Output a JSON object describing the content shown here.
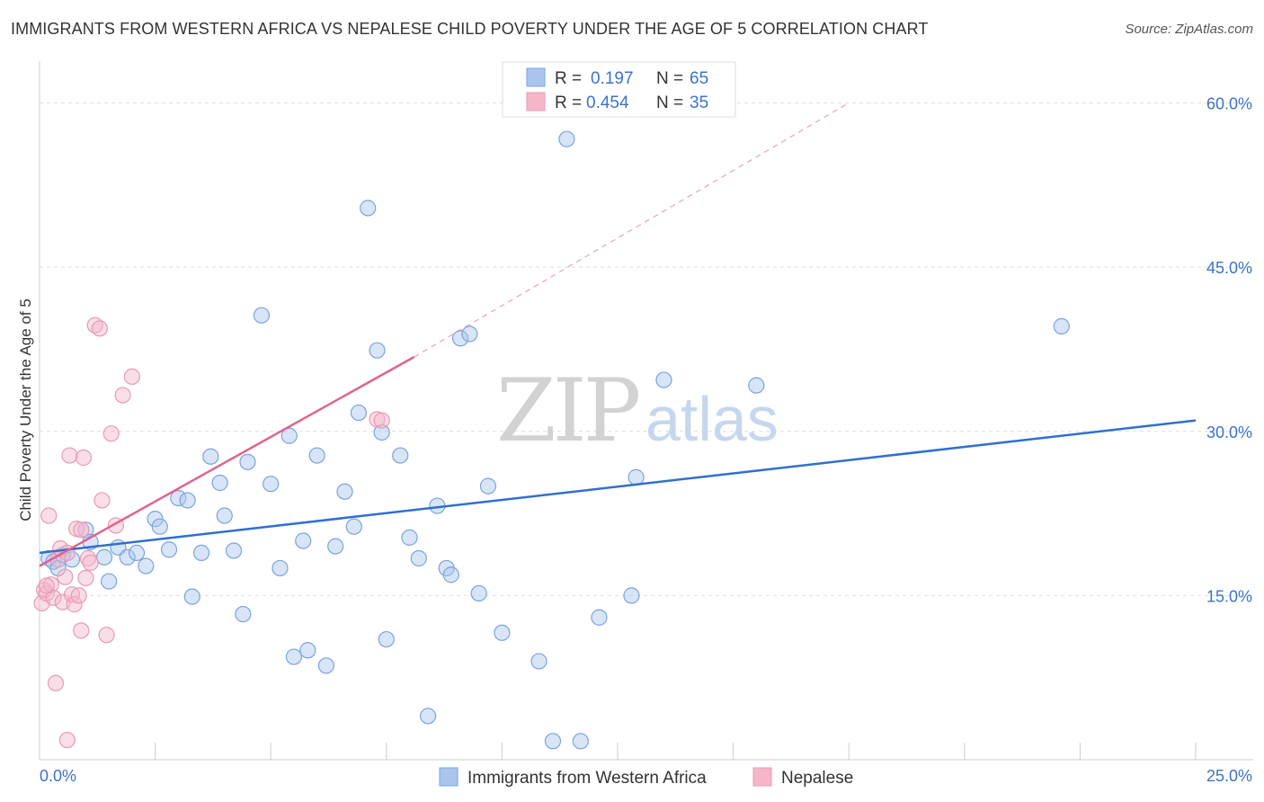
{
  "title": "IMMIGRANTS FROM WESTERN AFRICA VS NEPALESE CHILD POVERTY UNDER THE AGE OF 5 CORRELATION CHART",
  "source": "Source: ZipAtlas.com",
  "watermark": {
    "zip": "ZIP",
    "atlas": "atlas"
  },
  "colors": {
    "blue": "#3b73c8",
    "blue_fill": "#a9c5ee",
    "blue_line": "#2f6fd0",
    "pink": "#e0628d",
    "pink_fill": "#f5b6ca",
    "grid": "#dddddd"
  },
  "legend": {
    "r_label": "R =",
    "n_label": "N =",
    "rows": [
      {
        "r": "0.197",
        "n": "65"
      },
      {
        "r": "0.454",
        "n": "35"
      }
    ]
  },
  "chart_data": {
    "type": "scatter",
    "title": "IMMIGRANTS FROM WESTERN AFRICA VS NEPALESE CHILD POVERTY UNDER THE AGE OF 5 CORRELATION CHART",
    "xlabel": "",
    "ylabel": "Child Poverty Under the Age of 5",
    "xlim": [
      0,
      25
    ],
    "ylim": [
      0,
      63
    ],
    "x_tick_labels": [
      "0.0%",
      "25.0%"
    ],
    "y_ticks": [
      15,
      30,
      45,
      60
    ],
    "y_tick_labels": [
      "15.0%",
      "30.0%",
      "45.0%",
      "60.0%"
    ],
    "grid": true,
    "legend_position": "top-center",
    "series": [
      {
        "name": "Immigrants from Western Africa",
        "color": "#3b73c8",
        "trend": {
          "x0": 0,
          "y0": 18.9,
          "x1": 25,
          "y1": 31.0
        },
        "points": [
          [
            0.2,
            18.4
          ],
          [
            0.3,
            18.1
          ],
          [
            0.4,
            17.5
          ],
          [
            0.5,
            18.7
          ],
          [
            0.7,
            18.3
          ],
          [
            1.0,
            21.0
          ],
          [
            1.1,
            19.9
          ],
          [
            1.4,
            18.5
          ],
          [
            1.5,
            16.3
          ],
          [
            1.7,
            19.4
          ],
          [
            1.9,
            18.5
          ],
          [
            2.1,
            18.9
          ],
          [
            2.3,
            17.7
          ],
          [
            2.5,
            22.0
          ],
          [
            2.6,
            21.3
          ],
          [
            2.8,
            19.2
          ],
          [
            3.0,
            23.9
          ],
          [
            3.2,
            23.7
          ],
          [
            3.3,
            14.9
          ],
          [
            3.5,
            18.9
          ],
          [
            3.7,
            27.7
          ],
          [
            3.9,
            25.3
          ],
          [
            4.0,
            22.3
          ],
          [
            4.2,
            19.1
          ],
          [
            4.4,
            13.3
          ],
          [
            4.5,
            27.2
          ],
          [
            4.8,
            40.6
          ],
          [
            5.0,
            25.2
          ],
          [
            5.2,
            17.5
          ],
          [
            5.4,
            29.6
          ],
          [
            5.5,
            9.4
          ],
          [
            5.7,
            20.0
          ],
          [
            5.8,
            10.0
          ],
          [
            6.0,
            27.8
          ],
          [
            6.2,
            8.6
          ],
          [
            6.4,
            19.5
          ],
          [
            6.6,
            24.5
          ],
          [
            6.8,
            21.3
          ],
          [
            6.9,
            31.7
          ],
          [
            7.1,
            50.4
          ],
          [
            7.3,
            37.4
          ],
          [
            7.4,
            29.9
          ],
          [
            7.5,
            11.0
          ],
          [
            7.8,
            27.8
          ],
          [
            8.0,
            20.3
          ],
          [
            8.2,
            18.4
          ],
          [
            8.4,
            4.0
          ],
          [
            8.6,
            23.2
          ],
          [
            8.8,
            17.5
          ],
          [
            8.9,
            16.9
          ],
          [
            9.1,
            38.5
          ],
          [
            9.3,
            38.9
          ],
          [
            9.5,
            15.2
          ],
          [
            9.7,
            25.0
          ],
          [
            10.0,
            11.6
          ],
          [
            10.8,
            9.0
          ],
          [
            11.1,
            1.7
          ],
          [
            11.4,
            56.7
          ],
          [
            11.7,
            1.7
          ],
          [
            12.1,
            13.0
          ],
          [
            12.8,
            15.0
          ],
          [
            12.9,
            25.8
          ],
          [
            13.5,
            34.7
          ],
          [
            15.5,
            34.2
          ],
          [
            22.1,
            39.6
          ]
        ]
      },
      {
        "name": "Nepalese",
        "color": "#e0628d",
        "trend": {
          "x0": 0,
          "y0": 17.7,
          "x1": 8.1,
          "y1": 36.8
        },
        "trend_extension": {
          "x1": 17.5,
          "y1": 60.0
        },
        "points": [
          [
            0.05,
            14.3
          ],
          [
            0.1,
            15.5
          ],
          [
            0.15,
            15.2
          ],
          [
            0.2,
            22.3
          ],
          [
            0.25,
            16.0
          ],
          [
            0.3,
            14.8
          ],
          [
            0.35,
            7.0
          ],
          [
            0.4,
            18.3
          ],
          [
            0.45,
            19.3
          ],
          [
            0.5,
            14.4
          ],
          [
            0.55,
            16.7
          ],
          [
            0.6,
            18.9
          ],
          [
            0.6,
            1.8
          ],
          [
            0.65,
            27.8
          ],
          [
            0.7,
            15.1
          ],
          [
            0.75,
            14.2
          ],
          [
            0.8,
            21.1
          ],
          [
            0.85,
            15.0
          ],
          [
            0.9,
            11.8
          ],
          [
            0.9,
            21.0
          ],
          [
            0.95,
            27.6
          ],
          [
            1.0,
            16.6
          ],
          [
            1.05,
            18.4
          ],
          [
            1.1,
            18.0
          ],
          [
            1.2,
            39.7
          ],
          [
            1.3,
            39.4
          ],
          [
            1.35,
            23.7
          ],
          [
            1.45,
            11.4
          ],
          [
            1.55,
            29.8
          ],
          [
            1.65,
            21.4
          ],
          [
            1.8,
            33.3
          ],
          [
            2.0,
            35.0
          ],
          [
            7.3,
            31.1
          ],
          [
            7.4,
            31.0
          ],
          [
            0.15,
            15.9
          ]
        ]
      }
    ]
  },
  "bottom_legend": [
    "Immigrants from Western Africa",
    "Nepalese"
  ]
}
